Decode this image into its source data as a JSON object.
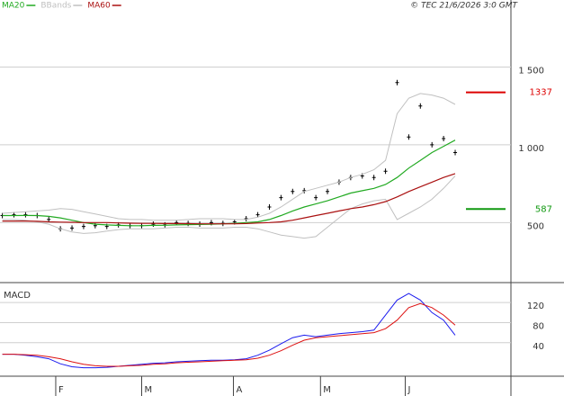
{
  "chart_data": [
    {
      "type": "price",
      "copyright": "© TEC 21/6/2026 3:0 GMT",
      "ylim": [
        120,
        1850
      ],
      "yticks": [
        500,
        {
          "value": 1000,
          "label": "1 000"
        },
        {
          "value": 1500,
          "label": "1 500"
        }
      ],
      "grid": true,
      "series": [
        {
          "color": "#000000",
          "values": [
            545,
            550,
            550,
            545,
            520,
            460,
            465,
            475,
            480,
            475,
            485,
            480,
            480,
            490,
            485,
            500,
            495,
            490,
            500,
            495,
            505,
            525,
            550,
            600,
            660,
            700,
            705,
            660,
            700,
            760,
            790,
            800,
            790,
            830,
            1400,
            1050,
            1250,
            1000,
            1040,
            950
          ]
        },
        {
          "name": "MA20",
          "color": "#22aa22",
          "values": [
            545,
            545,
            546,
            545,
            540,
            530,
            515,
            500,
            490,
            485,
            482,
            480,
            480,
            482,
            483,
            485,
            487,
            488,
            490,
            492,
            495,
            500,
            505,
            520,
            545,
            575,
            600,
            620,
            640,
            665,
            690,
            705,
            720,
            745,
            790,
            850,
            900,
            950,
            990,
            1030
          ]
        },
        {
          "name": "BBands",
          "color": "#c0c0c0",
          "upper": [
            560,
            565,
            570,
            575,
            580,
            590,
            585,
            570,
            555,
            540,
            525,
            520,
            520,
            515,
            515,
            515,
            520,
            525,
            525,
            525,
            520,
            520,
            535,
            560,
            600,
            650,
            700,
            720,
            740,
            760,
            790,
            810,
            840,
            900,
            1200,
            1300,
            1330,
            1320,
            1300,
            1260
          ],
          "lower": [
            520,
            520,
            515,
            505,
            490,
            460,
            440,
            430,
            435,
            445,
            455,
            460,
            460,
            460,
            465,
            470,
            470,
            465,
            465,
            465,
            470,
            470,
            460,
            440,
            420,
            410,
            400,
            410,
            470,
            530,
            590,
            620,
            640,
            650,
            520,
            560,
            600,
            650,
            720,
            800
          ]
        },
        {
          "name": "MA60",
          "color": "#aa1111",
          "values": [
            510,
            510,
            510,
            508,
            505,
            503,
            502,
            500,
            500,
            500,
            498,
            496,
            495,
            495,
            494,
            494,
            493,
            492,
            492,
            492,
            492,
            494,
            497,
            500,
            505,
            515,
            530,
            545,
            560,
            575,
            590,
            600,
            615,
            635,
            665,
            700,
            730,
            760,
            790,
            815
          ]
        }
      ],
      "levels": [
        {
          "value": 1337,
          "color": "#dd0000"
        },
        {
          "value": 587,
          "color": "#119911"
        }
      ]
    },
    {
      "type": "macd",
      "title": "MACD",
      "ylim": [
        -25,
        158
      ],
      "yticks": [
        40,
        80,
        120
      ],
      "grid": true,
      "xlim": [
        -0.2,
        43.8
      ],
      "xticks": [
        {
          "value": 4.6,
          "label": "F"
        },
        {
          "value": 12,
          "label": "M"
        },
        {
          "value": 19.9,
          "label": "A"
        },
        {
          "value": 27.4,
          "label": "M"
        },
        {
          "value": 34.7,
          "label": "J"
        }
      ],
      "series": [
        {
          "color": "#1a1aee",
          "values": [
            17,
            17,
            15,
            12,
            8,
            -2,
            -8,
            -10,
            -10,
            -9,
            -7,
            -5,
            -3,
            -1,
            0,
            2,
            3,
            4,
            5,
            5,
            6,
            8,
            15,
            25,
            38,
            50,
            55,
            52,
            55,
            58,
            60,
            62,
            65,
            95,
            125,
            138,
            125,
            100,
            85,
            55
          ]
        },
        {
          "color": "#dd1111",
          "values": [
            17,
            17,
            16,
            15,
            12,
            8,
            2,
            -3,
            -6,
            -7,
            -7,
            -6,
            -5,
            -3,
            -2,
            0,
            1,
            2,
            3,
            4,
            5,
            6,
            9,
            15,
            24,
            35,
            45,
            50,
            52,
            54,
            56,
            58,
            60,
            68,
            85,
            110,
            118,
            110,
            95,
            75
          ]
        }
      ]
    }
  ]
}
